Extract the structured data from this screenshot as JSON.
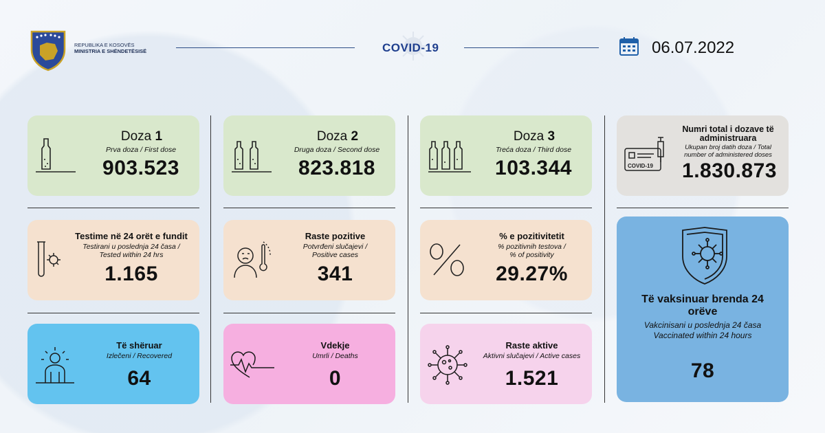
{
  "header": {
    "ministry_line1": "REPUBLIKA E KOSOVËS",
    "ministry_line2": "MINISTRIA E SHËNDETËSISË",
    "covid_title": "COVID-19",
    "date": "06.07.2022"
  },
  "colors": {
    "green": "#d9e8cc",
    "grey": "#e3e1de",
    "peach": "#f5e1cf",
    "blue": "#63c3ef",
    "pink": "#f6afe0",
    "light_pink": "#f6d3ec",
    "big_blue": "#79b3e1",
    "title_blue": "#1f3f8e"
  },
  "cards": {
    "dose1": {
      "label": "Doza",
      "num": "1",
      "sub": "Prva doza / First dose",
      "value": "903.523",
      "icon": "vial-icon"
    },
    "dose2": {
      "label": "Doza",
      "num": "2",
      "sub": "Druga doza / Second dose",
      "value": "823.818",
      "icon": "two-vials-icon"
    },
    "dose3": {
      "label": "Doza",
      "num": "3",
      "sub": "Treća doza / Third dose",
      "value": "103.344",
      "icon": "three-vials-icon"
    },
    "total": {
      "title": "Numri total i dozave të administruara",
      "sub": "Ukupan broj datih doza / Total number of administered doses",
      "value": "1.830.873",
      "icon": "covid-certificate-icon",
      "icon_label": "COVID-19"
    },
    "tests": {
      "title": "Testime në 24 orët e fundit",
      "sub1": "Testirani u poslednja 24 časa /",
      "sub2": "Tested within 24 hrs",
      "value": "1.165",
      "icon": "test-tube-icon"
    },
    "positive": {
      "title": "Raste pozitive",
      "sub1": "Potvrđeni slučajevi /",
      "sub2": "Positive cases",
      "value": "341",
      "icon": "sick-person-icon"
    },
    "positivity": {
      "title": "% e pozitivitetit",
      "sub1": "% pozitivnih testova /",
      "sub2": "% of positivity",
      "value": "29.27%",
      "icon": "percent-icon"
    },
    "vaccinated24": {
      "title": "Të vaksinuar brenda 24 orëve",
      "sub1": "Vakcinisani u poslednja 24 časa",
      "sub2": "Vaccinated within 24 hours",
      "value": "78",
      "icon": "shield-virus-icon"
    },
    "recovered": {
      "title": "Të shëruar",
      "sub": "Izlečeni / Recovered",
      "value": "64",
      "icon": "recovered-person-icon"
    },
    "deaths": {
      "title": "Vdekje",
      "sub": "Umrli / Deaths",
      "value": "0",
      "icon": "heartbeat-icon"
    },
    "active": {
      "title": "Raste aktive",
      "sub": "Aktivni slučajevi / Active cases",
      "value": "1.521",
      "icon": "virus-icon"
    }
  }
}
